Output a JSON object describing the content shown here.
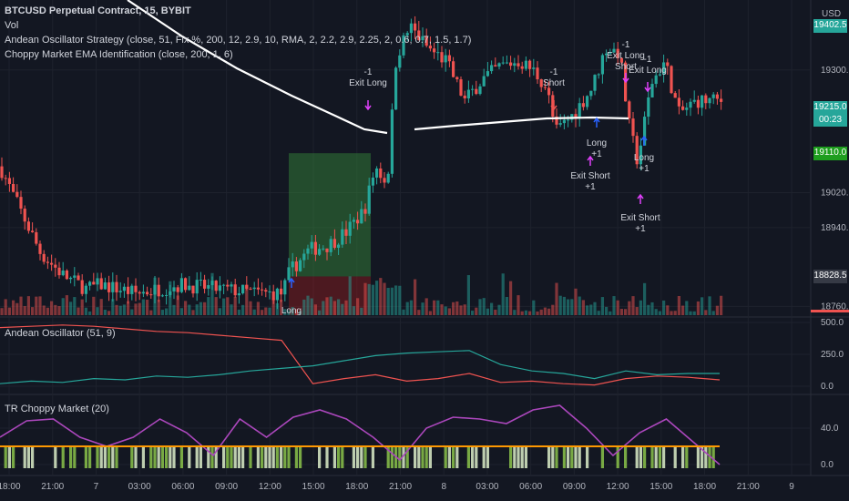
{
  "header": {
    "title": "BTCUSD Perpetual Contract, 15, BYBIT",
    "vol": "Vol",
    "strategy": "Andean Oscillator Strategy (close, 51, Fix %, 200, 12, 2.9, 10, RMA, 2, 2.2, 2.9, 2.25, 2, 0.6, 0.7, 1.5, 1.7)",
    "choppy_ema": "Choppy Market EMA Identification (close, 200, 1, 6)",
    "currency": "USD"
  },
  "price_axis": {
    "ticks": [
      {
        "label": "19300.0",
        "value": 19300
      },
      {
        "label": "19020.0",
        "value": 19020
      },
      {
        "label": "18940.0",
        "value": 18940
      },
      {
        "label": "18760.0",
        "value": 18760
      }
    ],
    "tags": [
      {
        "label": "19402.5",
        "value": 19402.5,
        "color": "#26a69a"
      },
      {
        "label": "19215.0",
        "value": 19215,
        "sub": "00:23",
        "color": "#26a69a"
      },
      {
        "label": "19110.0",
        "value": 19110,
        "color": "#1e9e1e"
      },
      {
        "label": "18828.5",
        "value": 18828.5,
        "color": "#363a45"
      }
    ]
  },
  "panes": {
    "andean": {
      "label": "Andean Oscillator (51, 9)",
      "ticks": [
        {
          "label": "500.0",
          "value": 500
        },
        {
          "label": "250.0",
          "value": 250
        },
        {
          "label": "0.0",
          "value": 0
        }
      ]
    },
    "choppy": {
      "label": "TR Choppy Market (20)",
      "ticks": [
        {
          "label": "40.0",
          "value": 40
        },
        {
          "label": "0.0",
          "value": 0
        }
      ]
    }
  },
  "time_axis": [
    "18:00",
    "21:00",
    "7",
    "03:00",
    "06:00",
    "09:00",
    "12:00",
    "15:00",
    "18:00",
    "21:00",
    "8",
    "03:00",
    "06:00",
    "09:00",
    "12:00",
    "15:00",
    "18:00",
    "21:00",
    "9"
  ],
  "annotations": [
    {
      "lines": [
        "-1",
        "Exit Long"
      ],
      "kind": "exit-long"
    },
    {
      "lines": [
        "-1",
        "Short"
      ],
      "kind": "short"
    },
    {
      "lines": [
        "-1",
        "Exit Long",
        "Short"
      ],
      "kind": "exit-long-short"
    },
    {
      "lines": [
        "-1",
        "Exit Long"
      ],
      "kind": "exit-long"
    },
    {
      "lines": [
        "Long",
        "+1"
      ],
      "kind": "long"
    },
    {
      "lines": [
        "Exit Short",
        "+1"
      ],
      "kind": "exit-short"
    },
    {
      "lines": [
        "Long",
        "+1"
      ],
      "kind": "long"
    },
    {
      "lines": [
        "Exit Short",
        "+1"
      ],
      "kind": "exit-short"
    },
    {
      "lines": [
        "Long"
      ],
      "kind": "long"
    }
  ],
  "colors": {
    "bull": "#26a69a",
    "bear": "#ef5350",
    "ema": "#ffffff",
    "osc_bull": "#26a69a",
    "osc_bear": "#ef5350",
    "choppy_line": "#ab47bc",
    "choppy_level": "#ff9800",
    "arrow_long": "#2962ff",
    "arrow_short": "#e040fb"
  },
  "chart_data": [
    {
      "type": "candlestick",
      "title": "BTCUSD Perpetual Contract, 15, BYBIT",
      "ylim": [
        18740,
        19460
      ],
      "price_levels_shown": [
        19402.5,
        19300.0,
        19215.0,
        19110.0,
        19020.0,
        18940.0,
        18828.5,
        18760.0
      ],
      "last_price": 19215.0,
      "overlays": [
        "Vol",
        "Choppy Market EMA Identification (200)"
      ]
    },
    {
      "type": "line",
      "title": "Andean Oscillator (51, 9)",
      "ylim": [
        0,
        500
      ],
      "series": [
        {
          "values": [
            460,
            470,
            480,
            470,
            450,
            430,
            420,
            400,
            380,
            360,
            20,
            60,
            90,
            40,
            60,
            100,
            30,
            40,
            20,
            10,
            60,
            80,
            70,
            50
          ]
        },
        {
          "values": [
            20,
            40,
            30,
            60,
            50,
            80,
            70,
            90,
            120,
            140,
            160,
            200,
            240,
            260,
            270,
            280,
            170,
            120,
            100,
            60,
            120,
            90,
            100,
            100
          ]
        }
      ]
    },
    {
      "type": "line",
      "title": "TR Choppy Market (20)",
      "ylim": [
        0,
        70
      ],
      "series": [
        {
          "values": [
            30,
            48,
            50,
            30,
            20,
            30,
            50,
            35,
            10,
            50,
            30,
            52,
            60,
            50,
            30,
            5,
            40,
            52,
            50,
            45,
            60,
            65,
            40,
            10,
            35,
            50,
            25,
            0
          ]
        },
        {
          "values": [
            20,
            20,
            20,
            20,
            20,
            20,
            20,
            20,
            20,
            20,
            20,
            20,
            20,
            20,
            20,
            20,
            20,
            20,
            20,
            20,
            20,
            20,
            20,
            20,
            20,
            20,
            20,
            20
          ]
        }
      ]
    }
  ]
}
